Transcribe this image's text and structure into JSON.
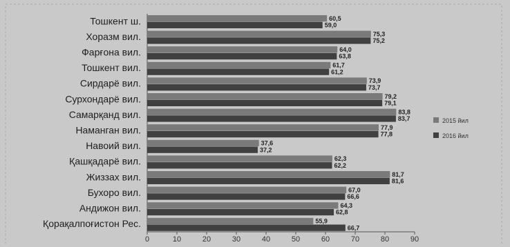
{
  "chart_data": {
    "type": "bar",
    "orientation": "horizontal",
    "categories": [
      "Тошкент ш.",
      "Хоразм вил.",
      "Фарғона вил.",
      "Тошкент вил.",
      "Сирдарё вил.",
      "Сурхондарё вил.",
      "Самарқанд вил.",
      "Наманган вил.",
      "Навоий вил.",
      "Қашқадарё вил.",
      "Жиззах вил.",
      "Бухоро вил.",
      "Андижон вил.",
      "Қорақалпоғистон Рес."
    ],
    "series": [
      {
        "name": "2015 йил",
        "color": "#7a7a7a",
        "values": [
          60.5,
          75.3,
          64.0,
          61.7,
          73.9,
          79.2,
          83.8,
          77.9,
          37.6,
          62.3,
          81.7,
          67.0,
          64.3,
          55.9
        ],
        "labels": [
          "60,5",
          "75,3",
          "64,0",
          "61,7",
          "73,9",
          "79,2",
          "83,8",
          "77,9",
          "37,6",
          "62,3",
          "81,7",
          "67,0",
          "64,3",
          "55,9"
        ]
      },
      {
        "name": "2016 йил",
        "color": "#404040",
        "values": [
          59.0,
          75.2,
          63.8,
          61.2,
          73.7,
          79.1,
          83.7,
          77.8,
          37.2,
          62.2,
          81.6,
          66.6,
          62.8,
          66.7
        ],
        "labels": [
          "59,0",
          "75,2",
          "63,8",
          "61,2",
          "73,7",
          "79,1",
          "83,7",
          "77,8",
          "37,2",
          "62,2",
          "81,6",
          "66,6",
          "62,8",
          "66,7"
        ]
      }
    ],
    "x_ticks": [
      "0",
      "10",
      "20",
      "30",
      "40",
      "50",
      "60",
      "70",
      "80",
      "90"
    ],
    "xlim": [
      0,
      90
    ],
    "grid": false,
    "legend_position": "right"
  }
}
